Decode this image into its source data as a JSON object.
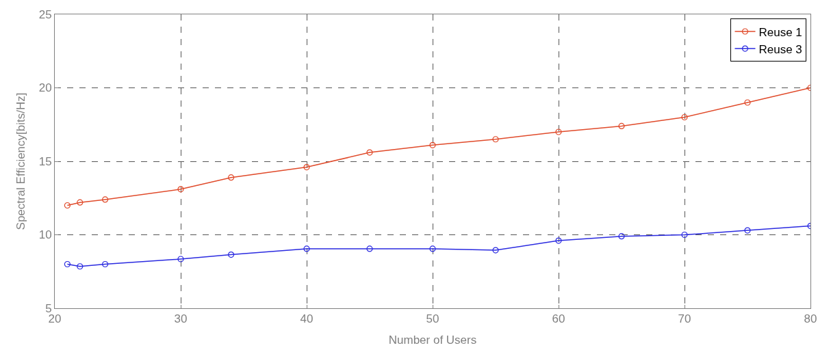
{
  "chart_data": {
    "type": "line",
    "xlabel": "Number of Users",
    "ylabel": "Spectral Efficiency[bits/Hz]",
    "x": [
      21,
      22,
      24,
      30,
      34,
      40,
      45,
      50,
      55,
      60,
      65,
      70,
      75,
      80
    ],
    "series": [
      {
        "name": "Reuse 1",
        "color": "#e04a2a",
        "values": [
          12.0,
          12.2,
          12.4,
          13.1,
          13.9,
          14.6,
          15.6,
          16.1,
          16.5,
          17.0,
          17.4,
          18.0,
          19.0,
          20.0
        ]
      },
      {
        "name": "Reuse 3",
        "color": "#2a2ae0",
        "values": [
          8.0,
          7.85,
          8.0,
          8.35,
          8.65,
          9.05,
          9.05,
          9.05,
          8.95,
          9.6,
          9.9,
          10.0,
          10.3,
          10.6
        ]
      }
    ],
    "xlim": [
      20,
      80
    ],
    "xticks": [
      20,
      30,
      40,
      50,
      60,
      70,
      80
    ],
    "ylim": [
      5,
      25
    ],
    "yticks": [
      5,
      10,
      15,
      20,
      25
    ],
    "grid": true,
    "legend": "top right",
    "marker": "circle",
    "line_style": "solid"
  }
}
